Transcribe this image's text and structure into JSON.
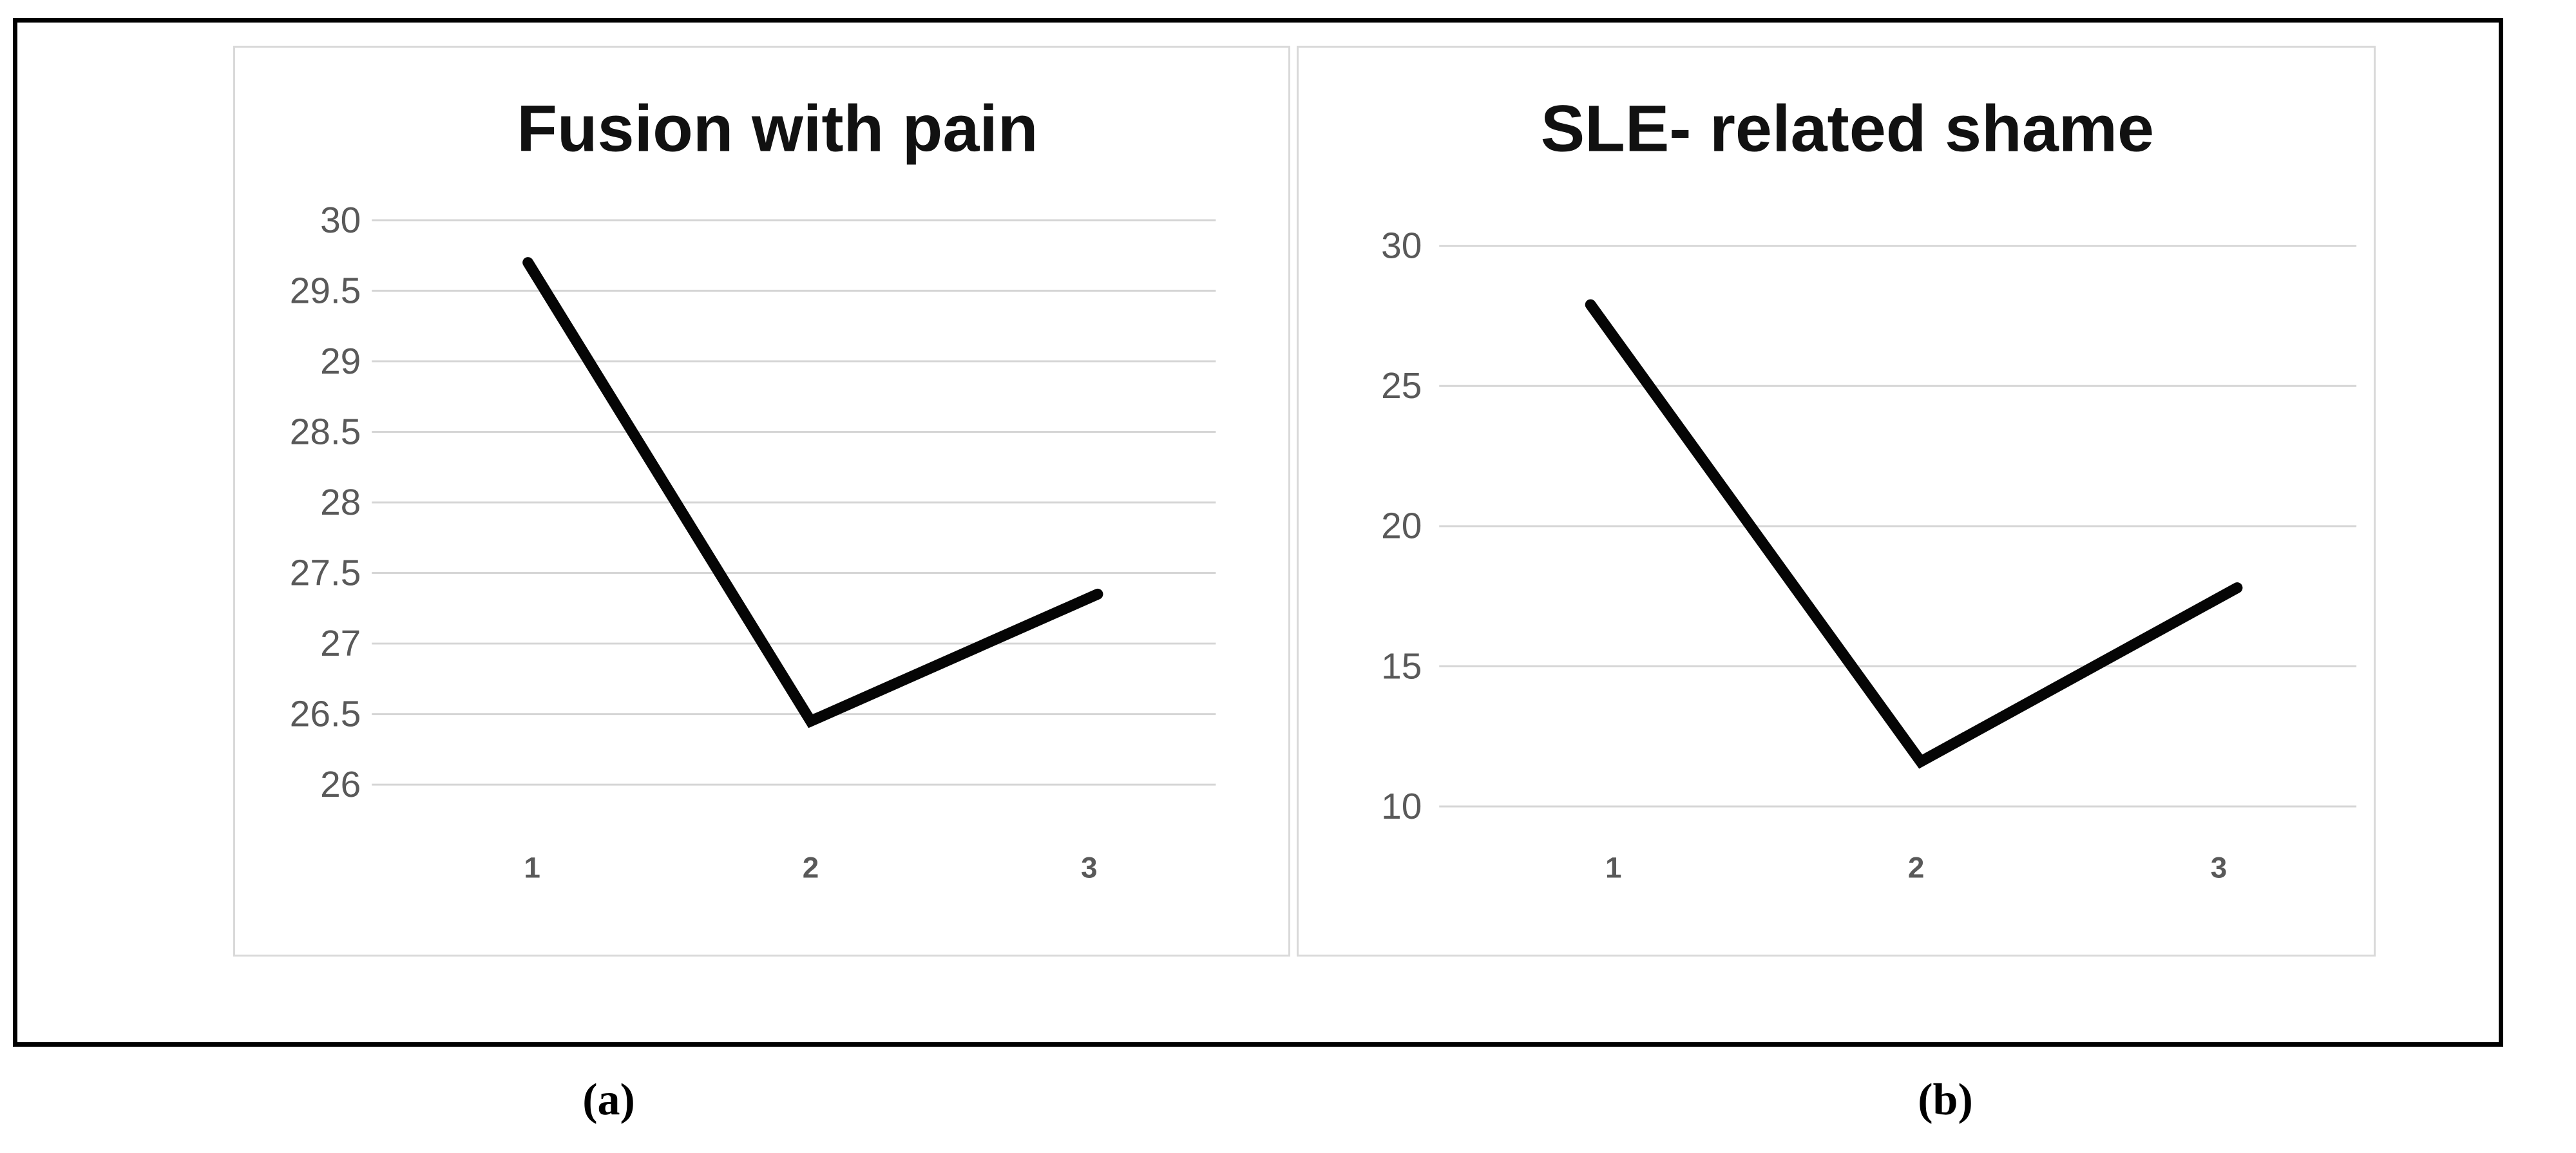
{
  "figure": {
    "caption_a": "(a)",
    "caption_b": "(b)"
  },
  "chart_data": [
    {
      "type": "line",
      "title": "Fusion with pain",
      "categories": [
        "1",
        "2",
        "3"
      ],
      "values": [
        29.7,
        26.45,
        27.35
      ],
      "xlabel": "",
      "ylabel": "",
      "ylim": [
        26,
        30
      ],
      "yticks": [
        30,
        29.5,
        29,
        28.5,
        28,
        27.5,
        27,
        26.5,
        26
      ],
      "grid": true,
      "legend": "none",
      "caption": "(a)"
    },
    {
      "type": "line",
      "title": "SLE- related shame",
      "categories": [
        "1",
        "2",
        "3"
      ],
      "values": [
        27.9,
        11.6,
        17.8
      ],
      "xlabel": "",
      "ylabel": "",
      "ylim": [
        10,
        30
      ],
      "yticks": [
        30,
        25,
        20,
        15,
        10
      ],
      "grid": true,
      "legend": "none",
      "caption": "(b)"
    }
  ],
  "styles": {
    "background": "#ffffff",
    "frame_border": "#000000",
    "panel_border": "#d9d9d9",
    "gridline": "#d6d6d6",
    "tick_label": "#595959",
    "title_color": "#111111",
    "line_color": "#050505",
    "caption_color": "#000000"
  }
}
